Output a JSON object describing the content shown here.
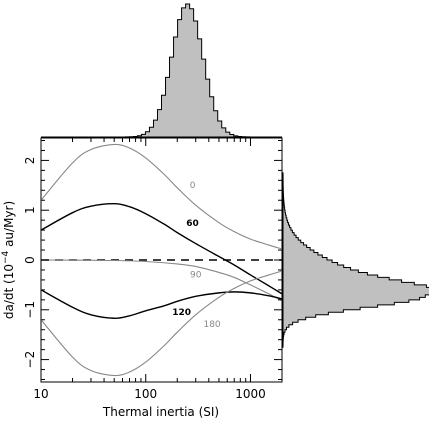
{
  "chart_data": {
    "type": "line",
    "xlabel": "Thermal inertia (SI)",
    "ylabel": "da/dt (10^{-4} au/Myr)",
    "ylabel_parts": {
      "prefix": "da/dt (10",
      "exponent": "−4",
      "suffix": " au/Myr)"
    },
    "xscale": "log",
    "xlim": [
      10,
      2000
    ],
    "ylim": [
      -2.45,
      2.45
    ],
    "x_ticks": [
      10,
      100,
      1000
    ],
    "x_tick_labels": [
      "10",
      "100",
      "1000"
    ],
    "y_ticks": [
      -2,
      -1,
      0,
      1,
      2
    ],
    "y_tick_labels": [
      "−2",
      "−1",
      "0",
      "1",
      "2"
    ],
    "grid": false,
    "zero_line": {
      "y": 0,
      "style": "dashed"
    },
    "series": [
      {
        "name": "0",
        "color": "#888888",
        "x": [
          10,
          20,
          30,
          50,
          70,
          100,
          150,
          200,
          300,
          500,
          700,
          1000,
          1500,
          2000
        ],
        "y": [
          1.2,
          1.95,
          2.22,
          2.32,
          2.25,
          2.05,
          1.72,
          1.45,
          1.1,
          0.75,
          0.57,
          0.42,
          0.3,
          0.22
        ]
      },
      {
        "name": "60",
        "color": "#000000",
        "x": [
          10,
          20,
          30,
          50,
          70,
          100,
          150,
          200,
          300,
          500,
          700,
          1000,
          1500,
          2000
        ],
        "y": [
          0.6,
          0.95,
          1.08,
          1.13,
          1.07,
          0.93,
          0.72,
          0.55,
          0.33,
          0.07,
          -0.1,
          -0.3,
          -0.52,
          -0.68
        ]
      },
      {
        "name": "90",
        "color": "#888888",
        "x": [
          10,
          50,
          100,
          200,
          300,
          500,
          700,
          1000,
          1500,
          2000
        ],
        "y": [
          0,
          -0.01,
          -0.03,
          -0.08,
          -0.13,
          -0.25,
          -0.35,
          -0.5,
          -0.68,
          -0.82
        ]
      },
      {
        "name": "120",
        "color": "#000000",
        "x": [
          10,
          20,
          30,
          50,
          70,
          100,
          150,
          200,
          300,
          500,
          700,
          1000,
          1500,
          2000
        ],
        "y": [
          -0.6,
          -0.95,
          -1.1,
          -1.17,
          -1.12,
          -1.02,
          -0.92,
          -0.83,
          -0.73,
          -0.66,
          -0.64,
          -0.66,
          -0.72,
          -0.78
        ]
      },
      {
        "name": "180",
        "color": "#888888",
        "x": [
          10,
          20,
          30,
          50,
          70,
          100,
          150,
          200,
          300,
          500,
          700,
          1000,
          1500,
          2000
        ],
        "y": [
          -1.2,
          -1.95,
          -2.22,
          -2.32,
          -2.25,
          -2.05,
          -1.72,
          -1.45,
          -1.1,
          -0.75,
          -0.57,
          -0.42,
          -0.3,
          -0.22
        ]
      }
    ],
    "curve_labels": [
      {
        "series": "0",
        "text": "0",
        "x": 280,
        "y": 1.45,
        "color": "#888888"
      },
      {
        "series": "60",
        "text": "60",
        "x": 280,
        "y": 0.68,
        "color": "#000000"
      },
      {
        "series": "90",
        "text": "90",
        "x": 300,
        "y": -0.35,
        "color": "#888888"
      },
      {
        "series": "120",
        "text": "120",
        "x": 220,
        "y": -1.1,
        "color": "#000000"
      },
      {
        "series": "180",
        "text": "180",
        "x": 430,
        "y": -1.35,
        "color": "#888888"
      }
    ],
    "top_histogram": {
      "type": "histogram",
      "x_mid": 250,
      "x_sigma_log10": 0.15,
      "fill": "#c0c0c0"
    },
    "right_histogram": {
      "type": "histogram",
      "orientation": "horizontal",
      "y_peak": -0.7,
      "fill": "#c0c0c0"
    }
  }
}
